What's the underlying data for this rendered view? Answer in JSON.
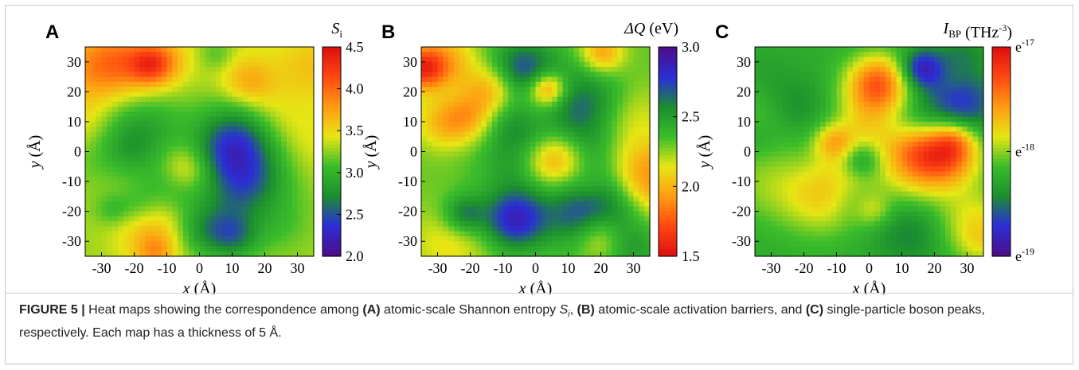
{
  "figure": {
    "label": "FIGURE 5 |",
    "caption_parts": [
      {
        "t": "Heat maps showing the correspondence among ",
        "b": false
      },
      {
        "t": "(A)",
        "b": true
      },
      {
        "t": " atomic-scale Shannon entropy ",
        "b": false
      },
      {
        "t": "S",
        "i": true
      },
      {
        "t": "i",
        "i": true,
        "sub": true
      },
      {
        "t": ", ",
        "b": false
      },
      {
        "t": "(B)",
        "b": true
      },
      {
        "t": " atomic-scale activation barriers, and ",
        "b": false
      },
      {
        "t": "(C)",
        "b": true
      },
      {
        "t": " single-particle boson peaks, respectively. Each map has a thickness of 5 Å.",
        "b": false
      }
    ]
  },
  "colors": {
    "heat_scale": [
      "#4b0f8c",
      "#2a2fd6",
      "#1c8f2e",
      "#3bbd2b",
      "#e6e614",
      "#ff9d12",
      "#ff4a12",
      "#e01010"
    ],
    "frame_border": "#c7c7c7"
  },
  "chart_data": [
    {
      "type": "heatmap",
      "panel": "A",
      "xlabel": "x (Å)",
      "ylabel": "y (Å)",
      "xlim": [
        -35,
        35
      ],
      "ylim": [
        -35,
        35
      ],
      "xticks": [
        -30,
        -20,
        -10,
        0,
        10,
        20,
        30
      ],
      "yticks": [
        30,
        20,
        10,
        0,
        -10,
        -20,
        -30
      ],
      "colorbar": {
        "label_main": "S",
        "label_sub": "i",
        "label_rest": "",
        "ticks": [
          "4.5",
          "4.0",
          "3.5",
          "3.0",
          "2.5",
          "2.0"
        ],
        "range": [
          2.0,
          4.5
        ],
        "reversed": false
      },
      "seed": 11
    },
    {
      "type": "heatmap",
      "panel": "B",
      "xlabel": "x (Å)",
      "ylabel": "y (Å)",
      "xlim": [
        -35,
        35
      ],
      "ylim": [
        -35,
        35
      ],
      "xticks": [
        -30,
        -20,
        -10,
        0,
        10,
        20,
        30
      ],
      "yticks": [
        30,
        20,
        10,
        0,
        -10,
        -20,
        -30
      ],
      "colorbar": {
        "label_main": "ΔQ",
        "label_sub": "",
        "label_rest": " (eV)",
        "ticks": [
          "3.0",
          "2.5",
          "2.0",
          "1.5"
        ],
        "range": [
          1.5,
          3.0
        ],
        "reversed": true
      },
      "seed": 23
    },
    {
      "type": "heatmap",
      "panel": "C",
      "xlabel": "x (Å)",
      "ylabel": "y (Å)",
      "xlim": [
        -35,
        35
      ],
      "ylim": [
        -35,
        35
      ],
      "xticks": [
        -30,
        -20,
        -10,
        0,
        10,
        20,
        30
      ],
      "yticks": [
        30,
        20,
        10,
        0,
        -10,
        -20,
        -30
      ],
      "colorbar": {
        "label_main": "I",
        "label_sub": "BP",
        "label_rest": " (THz",
        "label_sup": "-3",
        "label_end": ")",
        "ticks": [
          "e-17",
          "e-18",
          "e-19"
        ],
        "tick_base": "e",
        "tick_exps": [
          "-17",
          "-18",
          "-19"
        ],
        "range": [
          -19,
          -17
        ],
        "reversed": false
      },
      "seed": 37
    }
  ]
}
